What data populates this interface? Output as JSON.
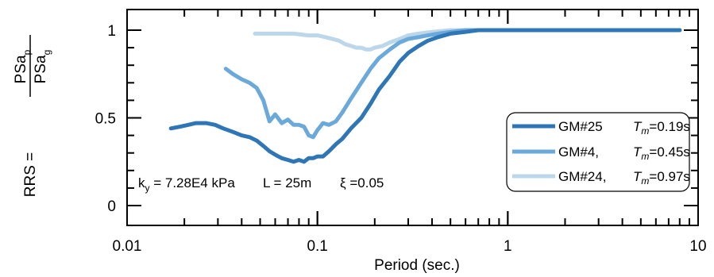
{
  "chart_data": {
    "type": "line",
    "xlabel": "Period (sec.)",
    "ylabel": {
      "prefix": "RRS = ",
      "numerator": "PSa",
      "numerator_sub": "p",
      "denominator": "PSa",
      "denominator_sub": "g"
    },
    "xscale": "log",
    "xlim": [
      0.01,
      10
    ],
    "ylim": [
      0,
      1.1
    ],
    "x_ticks": [
      {
        "value": 0.01,
        "label": "0.01"
      },
      {
        "value": 0.1,
        "label": "0.1"
      },
      {
        "value": 1,
        "label": "1"
      },
      {
        "value": 10,
        "label": "10"
      }
    ],
    "y_ticks": [
      {
        "value": 0,
        "label": "0"
      },
      {
        "value": 0.5,
        "label": "0.5"
      },
      {
        "value": 1,
        "label": "1"
      }
    ],
    "annotation": {
      "k": "k",
      "k_sub": "y",
      "k_value": " = 7.28E4 kPa",
      "length": "L = 25m",
      "xi": "ξ =0.05"
    },
    "legend_position": "bottom-right",
    "series": [
      {
        "name": "GM#25",
        "tm_label": "T",
        "tm_sub": "m",
        "tm_value": "=0.19s",
        "color": "#2f76b6",
        "x": [
          0.017,
          0.019,
          0.021,
          0.023,
          0.026,
          0.029,
          0.032,
          0.036,
          0.04,
          0.044,
          0.048,
          0.052,
          0.056,
          0.06,
          0.065,
          0.07,
          0.075,
          0.08,
          0.085,
          0.09,
          0.095,
          0.1,
          0.107,
          0.115,
          0.125,
          0.135,
          0.15,
          0.17,
          0.19,
          0.21,
          0.24,
          0.27,
          0.3,
          0.34,
          0.38,
          0.43,
          0.5,
          0.6,
          0.7,
          0.8,
          1.0,
          1.5,
          2.0,
          3.0,
          5.0,
          8.0
        ],
        "y": [
          0.44,
          0.45,
          0.46,
          0.47,
          0.47,
          0.46,
          0.44,
          0.42,
          0.4,
          0.39,
          0.37,
          0.34,
          0.31,
          0.29,
          0.27,
          0.26,
          0.25,
          0.26,
          0.25,
          0.27,
          0.27,
          0.28,
          0.28,
          0.31,
          0.35,
          0.38,
          0.44,
          0.5,
          0.58,
          0.66,
          0.74,
          0.82,
          0.87,
          0.91,
          0.94,
          0.96,
          0.98,
          0.99,
          1.0,
          1.0,
          1.0,
          1.0,
          1.0,
          1.0,
          1.0,
          1.0
        ]
      },
      {
        "name": "GM#4,",
        "tm_label": "T",
        "tm_sub": "m",
        "tm_value": "=0.45s",
        "color": "#6aa9d9",
        "x": [
          0.033,
          0.036,
          0.04,
          0.044,
          0.048,
          0.052,
          0.056,
          0.06,
          0.065,
          0.07,
          0.075,
          0.08,
          0.085,
          0.09,
          0.095,
          0.1,
          0.107,
          0.115,
          0.125,
          0.135,
          0.15,
          0.17,
          0.19,
          0.21,
          0.24,
          0.27,
          0.3,
          0.34,
          0.38,
          0.43,
          0.5,
          0.6,
          0.7,
          0.8,
          1.0,
          1.5,
          2.0,
          3.0,
          5.0,
          8.0
        ],
        "y": [
          0.78,
          0.75,
          0.72,
          0.7,
          0.67,
          0.6,
          0.48,
          0.52,
          0.47,
          0.49,
          0.46,
          0.46,
          0.45,
          0.4,
          0.39,
          0.43,
          0.47,
          0.46,
          0.48,
          0.53,
          0.61,
          0.7,
          0.78,
          0.84,
          0.89,
          0.93,
          0.95,
          0.96,
          0.97,
          0.98,
          0.99,
          1.0,
          1.0,
          1.0,
          1.0,
          1.0,
          1.0,
          1.0,
          1.0,
          1.0
        ]
      },
      {
        "name": "GM#24,",
        "tm_label": "T",
        "tm_sub": "m",
        "tm_value": "=0.97s",
        "color": "#bcd6ea",
        "x": [
          0.047,
          0.055,
          0.065,
          0.075,
          0.09,
          0.1,
          0.11,
          0.12,
          0.13,
          0.14,
          0.15,
          0.16,
          0.17,
          0.18,
          0.19,
          0.2,
          0.22,
          0.24,
          0.27,
          0.3,
          0.34,
          0.4,
          0.5,
          0.6,
          0.8,
          1.0,
          2.0,
          5.0,
          8.0
        ],
        "y": [
          0.98,
          0.98,
          0.98,
          0.98,
          0.97,
          0.97,
          0.96,
          0.95,
          0.94,
          0.92,
          0.91,
          0.9,
          0.9,
          0.89,
          0.89,
          0.9,
          0.91,
          0.93,
          0.95,
          0.97,
          0.98,
          0.99,
          1.0,
          1.0,
          1.0,
          1.0,
          1.0,
          1.0,
          1.0
        ]
      }
    ]
  }
}
